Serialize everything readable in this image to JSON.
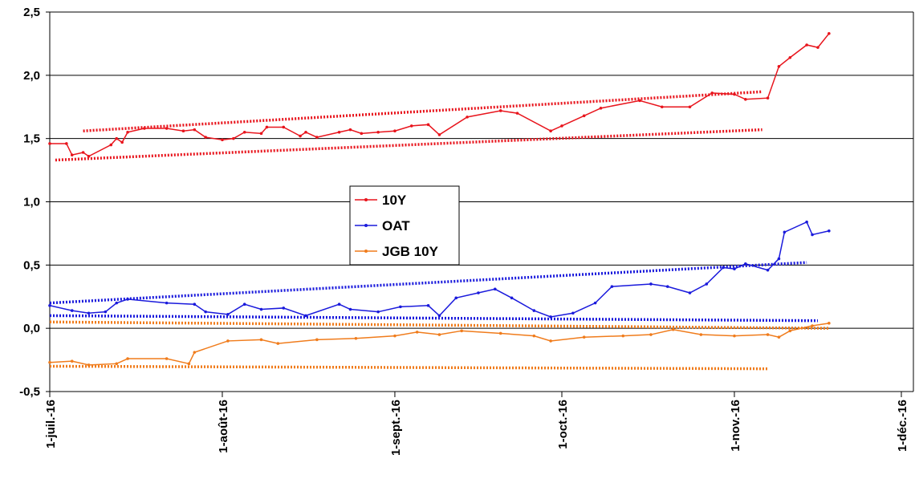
{
  "chart_data": {
    "type": "line",
    "xlim": [
      "2016-07-01",
      "2016-12-01"
    ],
    "xticks": [
      {
        "value": "2016-07-01",
        "label": "1-juil.-16"
      },
      {
        "value": "2016-08-01",
        "label": "1-août-16"
      },
      {
        "value": "2016-09-01",
        "label": "1-sept.-16"
      },
      {
        "value": "2016-10-01",
        "label": "1-oct.-16"
      },
      {
        "value": "2016-11-01",
        "label": "1-nov.-16"
      },
      {
        "value": "2016-12-01",
        "label": "1-déc.-16"
      }
    ],
    "ylim": [
      -0.5,
      2.5
    ],
    "yticks": [
      {
        "value": -0.5,
        "label": "-0,5"
      },
      {
        "value": 0,
        "label": "0,0"
      },
      {
        "value": 0.5,
        "label": "0,5"
      },
      {
        "value": 1,
        "label": "1,0"
      },
      {
        "value": 1.5,
        "label": "1,5"
      },
      {
        "value": 2,
        "label": "2,0"
      },
      {
        "value": 2.5,
        "label": "2,5"
      }
    ],
    "grid": true,
    "legend": "center",
    "series": [
      {
        "name": "10Y",
        "color": "#e8141c",
        "x": [
          "2016-07-01",
          "2016-07-04",
          "2016-07-05",
          "2016-07-07",
          "2016-07-08",
          "2016-07-12",
          "2016-07-13",
          "2016-07-14",
          "2016-07-15",
          "2016-07-18",
          "2016-07-22",
          "2016-07-25",
          "2016-07-27",
          "2016-07-29",
          "2016-08-01",
          "2016-08-03",
          "2016-08-05",
          "2016-08-08",
          "2016-08-09",
          "2016-08-12",
          "2016-08-15",
          "2016-08-16",
          "2016-08-18",
          "2016-08-22",
          "2016-08-24",
          "2016-08-26",
          "2016-08-29",
          "2016-09-01",
          "2016-09-04",
          "2016-09-07",
          "2016-09-09",
          "2016-09-14",
          "2016-09-20",
          "2016-09-23",
          "2016-09-29",
          "2016-10-01",
          "2016-10-05",
          "2016-10-08",
          "2016-10-15",
          "2016-10-19",
          "2016-10-24",
          "2016-10-28",
          "2016-11-01",
          "2016-11-03",
          "2016-11-07",
          "2016-11-09",
          "2016-11-11",
          "2016-11-14",
          "2016-11-16",
          "2016-11-18"
        ],
        "values": [
          1.46,
          1.46,
          1.37,
          1.39,
          1.36,
          1.45,
          1.5,
          1.47,
          1.55,
          1.58,
          1.58,
          1.56,
          1.57,
          1.51,
          1.49,
          1.5,
          1.55,
          1.54,
          1.59,
          1.59,
          1.52,
          1.55,
          1.51,
          1.55,
          1.57,
          1.54,
          1.55,
          1.56,
          1.6,
          1.61,
          1.53,
          1.67,
          1.72,
          1.7,
          1.56,
          1.6,
          1.68,
          1.74,
          1.8,
          1.75,
          1.75,
          1.86,
          1.85,
          1.81,
          1.82,
          2.07,
          2.14,
          2.24,
          2.22,
          2.33
        ]
      },
      {
        "name": "OAT",
        "color": "#1a1adc",
        "x": [
          "2016-07-01",
          "2016-07-05",
          "2016-07-08",
          "2016-07-11",
          "2016-07-13",
          "2016-07-15",
          "2016-07-22",
          "2016-07-27",
          "2016-07-29",
          "2016-08-02",
          "2016-08-05",
          "2016-08-08",
          "2016-08-12",
          "2016-08-16",
          "2016-08-22",
          "2016-08-24",
          "2016-08-29",
          "2016-09-02",
          "2016-09-07",
          "2016-09-09",
          "2016-09-12",
          "2016-09-16",
          "2016-09-19",
          "2016-09-22",
          "2016-09-26",
          "2016-09-29",
          "2016-10-03",
          "2016-10-07",
          "2016-10-10",
          "2016-10-17",
          "2016-10-20",
          "2016-10-24",
          "2016-10-27",
          "2016-10-30",
          "2016-11-01",
          "2016-11-03",
          "2016-11-07",
          "2016-11-09",
          "2016-11-10",
          "2016-11-14",
          "2016-11-15",
          "2016-11-18"
        ],
        "values": [
          0.18,
          0.14,
          0.12,
          0.13,
          0.2,
          0.23,
          0.2,
          0.19,
          0.13,
          0.11,
          0.19,
          0.15,
          0.16,
          0.1,
          0.19,
          0.15,
          0.13,
          0.17,
          0.18,
          0.1,
          0.24,
          0.28,
          0.31,
          0.24,
          0.14,
          0.09,
          0.12,
          0.2,
          0.33,
          0.35,
          0.33,
          0.28,
          0.35,
          0.48,
          0.47,
          0.51,
          0.46,
          0.55,
          0.76,
          0.84,
          0.74,
          0.77
        ]
      },
      {
        "name": "JGB 10Y",
        "color": "#f07c1c",
        "x": [
          "2016-07-01",
          "2016-07-05",
          "2016-07-08",
          "2016-07-13",
          "2016-07-15",
          "2016-07-22",
          "2016-07-26",
          "2016-07-27",
          "2016-08-02",
          "2016-08-08",
          "2016-08-11",
          "2016-08-18",
          "2016-08-25",
          "2016-09-01",
          "2016-09-05",
          "2016-09-09",
          "2016-09-13",
          "2016-09-20",
          "2016-09-26",
          "2016-09-29",
          "2016-10-05",
          "2016-10-12",
          "2016-10-17",
          "2016-10-21",
          "2016-10-26",
          "2016-11-01",
          "2016-11-07",
          "2016-11-09",
          "2016-11-11",
          "2016-11-15",
          "2016-11-18"
        ],
        "values": [
          -0.27,
          -0.26,
          -0.29,
          -0.28,
          -0.24,
          -0.24,
          -0.28,
          -0.19,
          -0.1,
          -0.09,
          -0.12,
          -0.09,
          -0.08,
          -0.06,
          -0.03,
          -0.05,
          -0.02,
          -0.04,
          -0.06,
          -0.1,
          -0.07,
          -0.06,
          -0.05,
          -0.01,
          -0.05,
          -0.06,
          -0.05,
          -0.07,
          -0.02,
          0.02,
          0.04
        ]
      }
    ],
    "trendlines": [
      {
        "color": "#e8141c",
        "x": [
          "2016-07-07",
          "2016-11-06"
        ],
        "values": [
          1.56,
          1.87
        ]
      },
      {
        "color": "#e8141c",
        "x": [
          "2016-07-02",
          "2016-11-06"
        ],
        "values": [
          1.33,
          1.57
        ]
      },
      {
        "color": "#1a1adc",
        "x": [
          "2016-07-01",
          "2016-11-14"
        ],
        "values": [
          0.2,
          0.52
        ]
      },
      {
        "color": "#1a1adc",
        "x": [
          "2016-07-01",
          "2016-11-16"
        ],
        "values": [
          0.1,
          0.06
        ]
      },
      {
        "color": "#f07c1c",
        "x": [
          "2016-07-01",
          "2016-11-18"
        ],
        "values": [
          0.05,
          0.0
        ]
      },
      {
        "color": "#f07c1c",
        "x": [
          "2016-07-01",
          "2016-11-07"
        ],
        "values": [
          -0.3,
          -0.32
        ]
      }
    ]
  }
}
